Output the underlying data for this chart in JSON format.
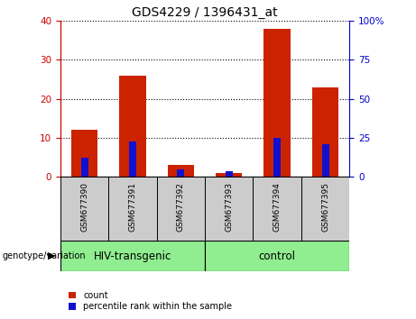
{
  "title": "GDS4229 / 1396431_at",
  "samples": [
    "GSM677390",
    "GSM677391",
    "GSM677392",
    "GSM677393",
    "GSM677394",
    "GSM677395"
  ],
  "count_values": [
    12,
    26,
    3,
    1,
    38,
    23
  ],
  "percentile_values": [
    5.0,
    9.0,
    2.0,
    1.5,
    10.0,
    8.5
  ],
  "groups": [
    {
      "label": "HIV-transgenic",
      "indices": [
        0,
        1,
        2
      ],
      "color": "#90EE90"
    },
    {
      "label": "control",
      "indices": [
        3,
        4,
        5
      ],
      "color": "#90EE90"
    }
  ],
  "left_ylim": [
    0,
    40
  ],
  "right_ylim": [
    0,
    100
  ],
  "left_yticks": [
    0,
    10,
    20,
    30,
    40
  ],
  "right_yticks": [
    0,
    25,
    50,
    75,
    100
  ],
  "left_ycolor": "#cc0000",
  "right_ycolor": "#0000cc",
  "count_color": "#cc2200",
  "percentile_color": "#1111cc",
  "legend_count_label": "count",
  "legend_percentile_label": "percentile rank within the sample",
  "genotype_label": "genotype/variation",
  "title_fontsize": 10,
  "sample_label_fontsize": 6.5,
  "group_label_fontsize": 8.5,
  "legend_fontsize": 7,
  "gray_bg": "#cccccc",
  "green_bg": "#90EE90"
}
